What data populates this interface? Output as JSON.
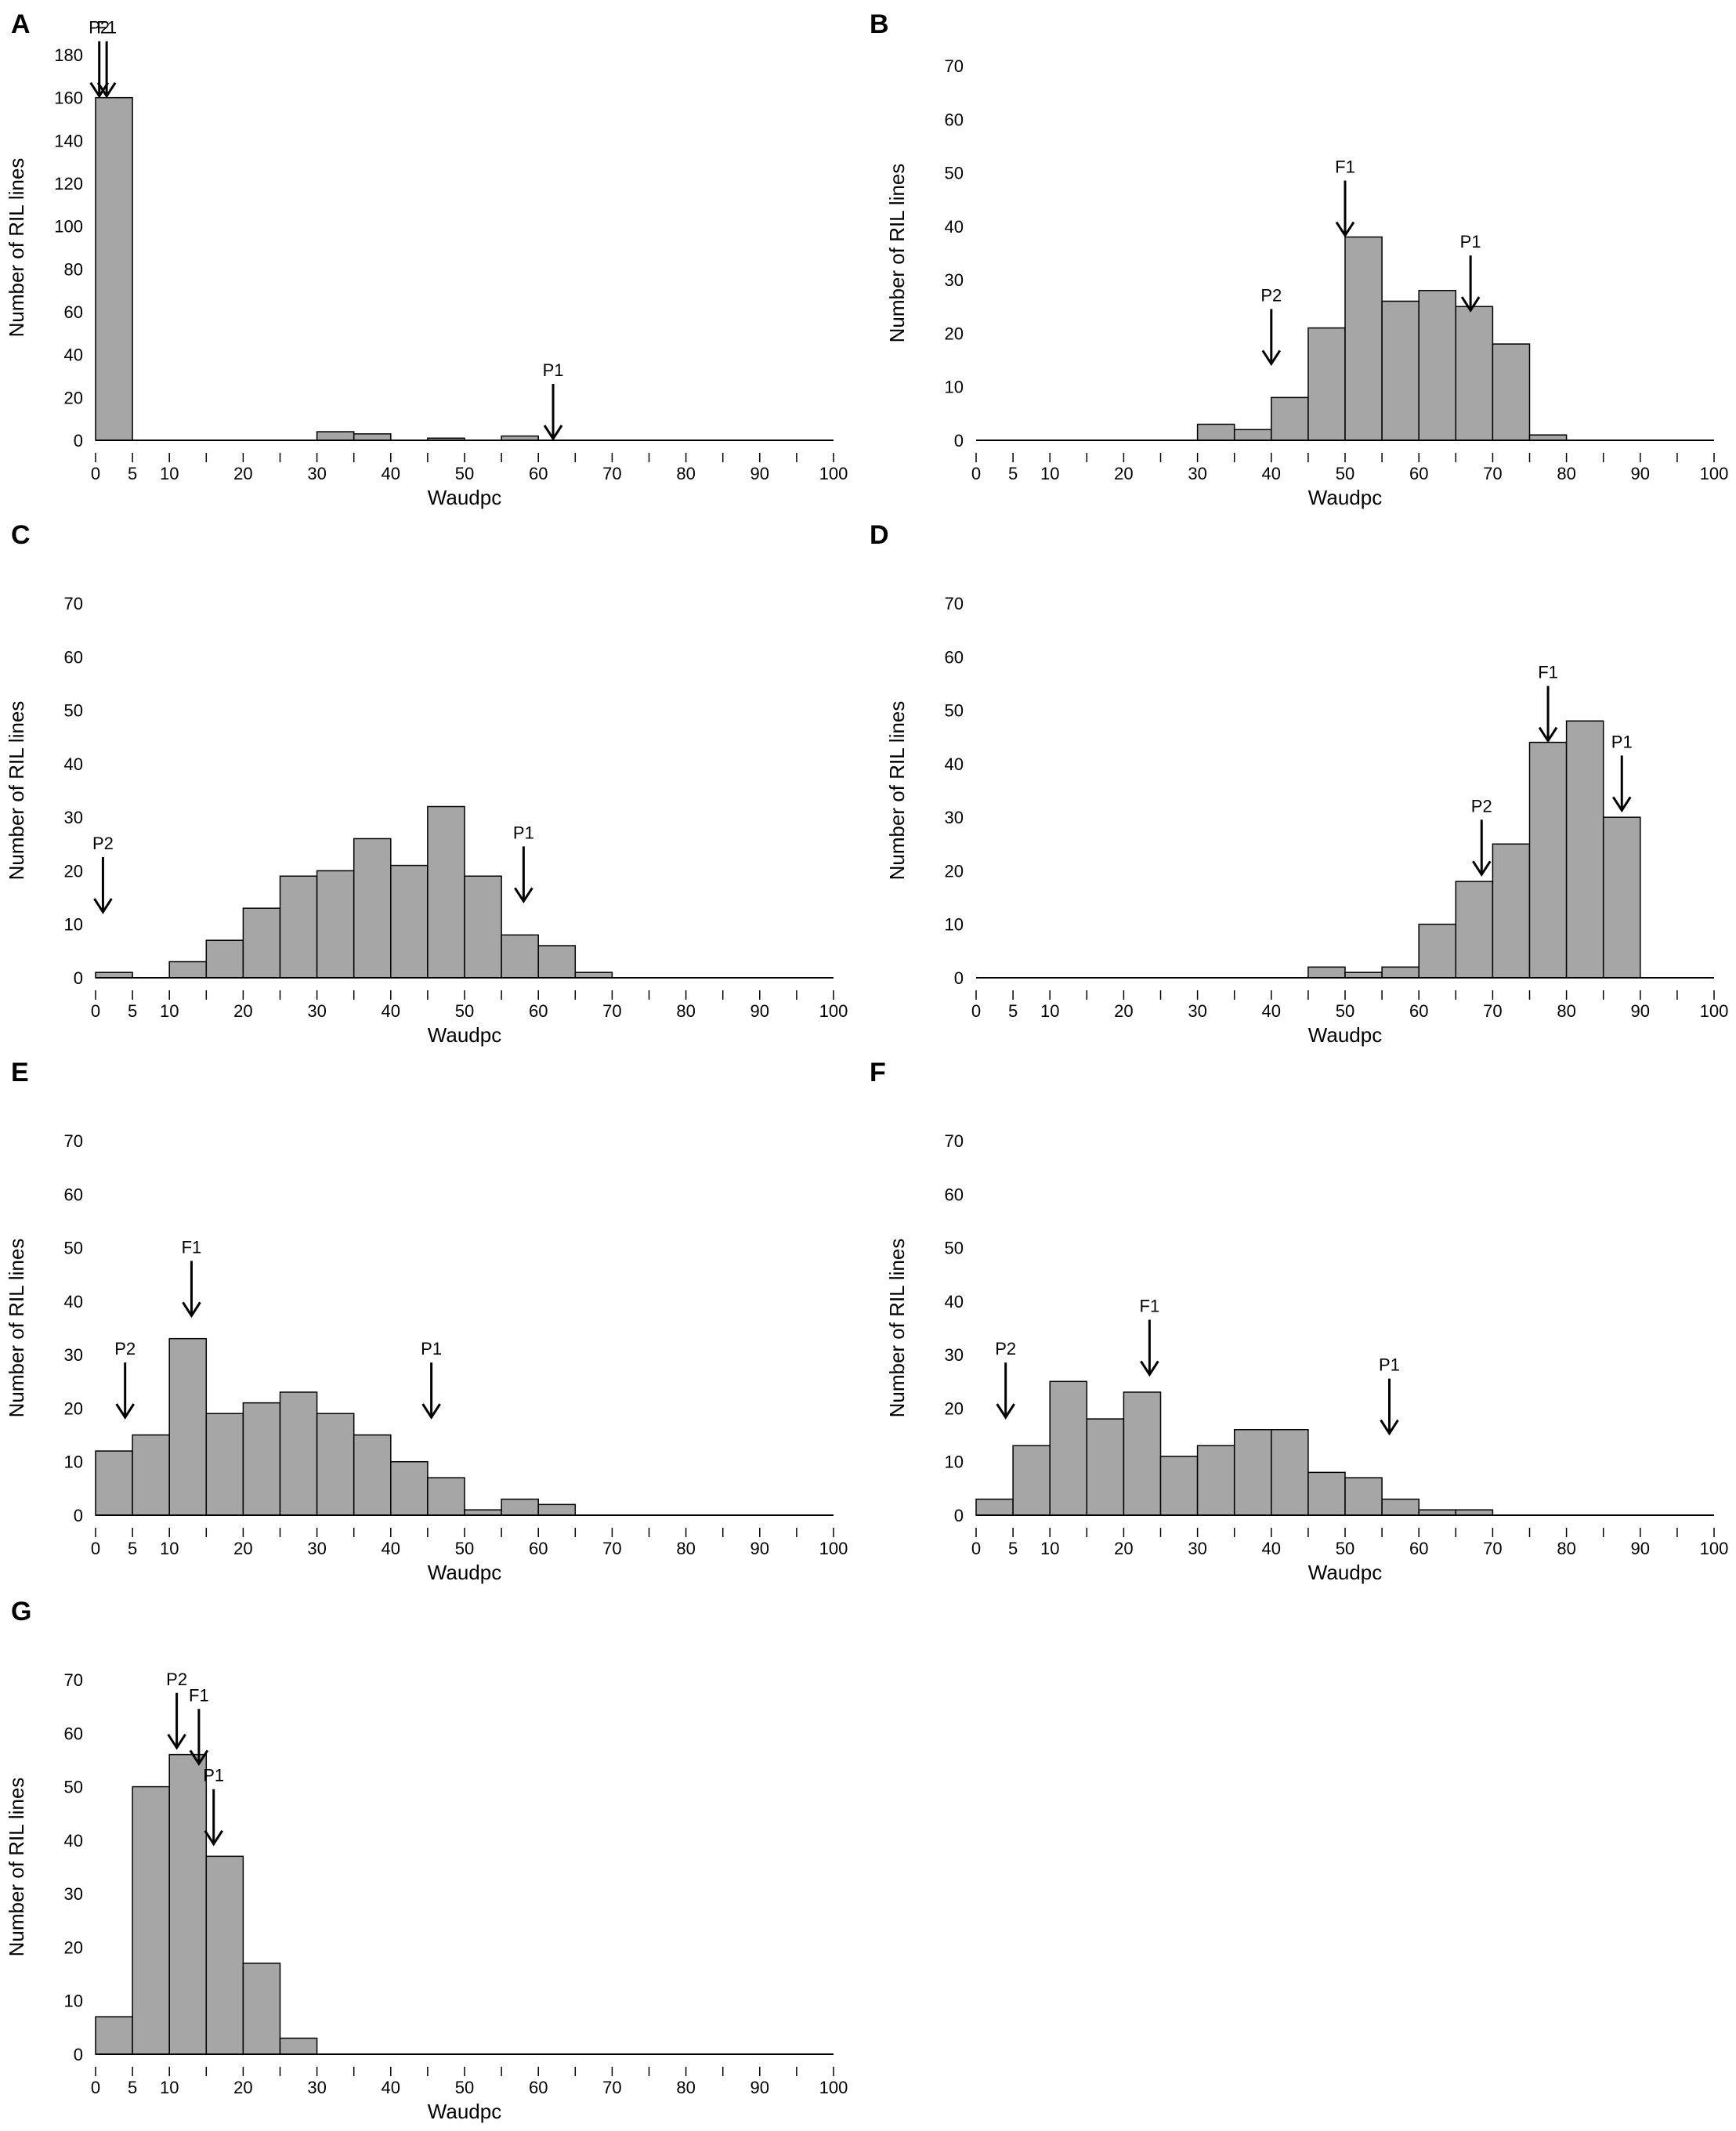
{
  "figure": {
    "bar_color": "#a6a6a6",
    "bar_stroke": "#000000"
  },
  "chart_data": [
    {
      "panel": "A",
      "type": "bar",
      "xlabel": "Waudpc",
      "ylabel": "Number of RIL lines",
      "xlim": [
        0,
        100
      ],
      "ylim": [
        0,
        180
      ],
      "xticks": [
        0,
        5,
        10,
        20,
        30,
        40,
        50,
        60,
        70,
        80,
        90,
        100
      ],
      "yticks": [
        0,
        20,
        40,
        60,
        80,
        100,
        120,
        140,
        160,
        180
      ],
      "bin_width": 5,
      "bins": [
        0,
        5,
        10,
        15,
        20,
        25,
        30,
        35,
        40,
        45,
        50,
        55,
        60,
        65,
        70,
        75,
        80,
        85,
        90,
        95
      ],
      "values": [
        160,
        0,
        0,
        0,
        0,
        0,
        4,
        3,
        0,
        1,
        0,
        2,
        0,
        0,
        0,
        0,
        0,
        0,
        0,
        0
      ],
      "markers": [
        {
          "label": "P2",
          "x": 0.5,
          "y": 160
        },
        {
          "label": "F1",
          "x": 1.5,
          "y": 160
        },
        {
          "label": "P1",
          "x": 62,
          "y": 0
        }
      ]
    },
    {
      "panel": "B",
      "type": "bar",
      "xlabel": "Waudpc",
      "ylabel": "Number of RIL lines",
      "xlim": [
        0,
        100
      ],
      "ylim": [
        0,
        70
      ],
      "xticks": [
        0,
        5,
        10,
        20,
        30,
        40,
        50,
        60,
        70,
        80,
        90,
        100
      ],
      "yticks": [
        0,
        10,
        20,
        30,
        40,
        50,
        60,
        70
      ],
      "bin_width": 5,
      "bins": [
        0,
        5,
        10,
        15,
        20,
        25,
        30,
        35,
        40,
        45,
        50,
        55,
        60,
        65,
        70,
        75,
        80,
        85,
        90,
        95
      ],
      "values": [
        0,
        0,
        0,
        0,
        0,
        0,
        3,
        2,
        8,
        21,
        38,
        26,
        28,
        25,
        18,
        1,
        0,
        0,
        0,
        0
      ],
      "markers": [
        {
          "label": "P2",
          "x": 40,
          "y": 14
        },
        {
          "label": "F1",
          "x": 50,
          "y": 38
        },
        {
          "label": "P1",
          "x": 67,
          "y": 24
        }
      ]
    },
    {
      "panel": "C",
      "type": "bar",
      "xlabel": "Waudpc",
      "ylabel": "Number of RIL lines",
      "xlim": [
        0,
        100
      ],
      "ylim": [
        0,
        70
      ],
      "xticks": [
        0,
        5,
        10,
        20,
        30,
        40,
        50,
        60,
        70,
        80,
        90,
        100
      ],
      "yticks": [
        0,
        10,
        20,
        30,
        40,
        50,
        60,
        70
      ],
      "bin_width": 5,
      "bins": [
        0,
        5,
        10,
        15,
        20,
        25,
        30,
        35,
        40,
        45,
        50,
        55,
        60,
        65,
        70,
        75,
        80,
        85,
        90,
        95
      ],
      "values": [
        1,
        0,
        3,
        7,
        13,
        19,
        20,
        26,
        21,
        32,
        19,
        8,
        6,
        1,
        0,
        0,
        0,
        0,
        0,
        0
      ],
      "markers": [
        {
          "label": "P2",
          "x": 1,
          "y": 12
        },
        {
          "label": "P1",
          "x": 58,
          "y": 14
        }
      ]
    },
    {
      "panel": "D",
      "type": "bar",
      "xlabel": "Waudpc",
      "ylabel": "Number of RIL lines",
      "xlim": [
        0,
        100
      ],
      "ylim": [
        0,
        70
      ],
      "xticks": [
        0,
        5,
        10,
        20,
        30,
        40,
        50,
        60,
        70,
        80,
        90,
        100
      ],
      "yticks": [
        0,
        10,
        20,
        30,
        40,
        50,
        60,
        70
      ],
      "bin_width": 5,
      "bins": [
        0,
        5,
        10,
        15,
        20,
        25,
        30,
        35,
        40,
        45,
        50,
        55,
        60,
        65,
        70,
        75,
        80,
        85,
        90,
        95
      ],
      "values": [
        0,
        0,
        0,
        0,
        0,
        0,
        0,
        0,
        0,
        2,
        1,
        2,
        10,
        18,
        25,
        44,
        48,
        30,
        0,
        0
      ],
      "markers": [
        {
          "label": "P2",
          "x": 68.5,
          "y": 19
        },
        {
          "label": "F1",
          "x": 77.5,
          "y": 44
        },
        {
          "label": "P1",
          "x": 87.5,
          "y": 31
        }
      ]
    },
    {
      "panel": "E",
      "type": "bar",
      "xlabel": "Waudpc",
      "ylabel": "Number of RIL lines",
      "xlim": [
        0,
        100
      ],
      "ylim": [
        0,
        70
      ],
      "xticks": [
        0,
        5,
        10,
        20,
        30,
        40,
        50,
        60,
        70,
        80,
        90,
        100
      ],
      "yticks": [
        0,
        10,
        20,
        30,
        40,
        50,
        60,
        70
      ],
      "bin_width": 5,
      "bins": [
        0,
        5,
        10,
        15,
        20,
        25,
        30,
        35,
        40,
        45,
        50,
        55,
        60,
        65,
        70,
        75,
        80,
        85,
        90,
        95
      ],
      "values": [
        12,
        15,
        33,
        19,
        21,
        23,
        19,
        15,
        10,
        7,
        1,
        3,
        2,
        0,
        0,
        0,
        0,
        0,
        0,
        0
      ],
      "markers": [
        {
          "label": "P2",
          "x": 4,
          "y": 18
        },
        {
          "label": "F1",
          "x": 13,
          "y": 37
        },
        {
          "label": "P1",
          "x": 45.5,
          "y": 18
        }
      ]
    },
    {
      "panel": "F",
      "type": "bar",
      "xlabel": "Waudpc",
      "ylabel": "Number of RIL lines",
      "xlim": [
        0,
        100
      ],
      "ylim": [
        0,
        70
      ],
      "xticks": [
        0,
        5,
        10,
        20,
        30,
        40,
        50,
        60,
        70,
        80,
        90,
        100
      ],
      "yticks": [
        0,
        10,
        20,
        30,
        40,
        50,
        60,
        70
      ],
      "bin_width": 5,
      "bins": [
        0,
        5,
        10,
        15,
        20,
        25,
        30,
        35,
        40,
        45,
        50,
        55,
        60,
        65,
        70,
        75,
        80,
        85,
        90,
        95
      ],
      "values": [
        3,
        13,
        25,
        18,
        23,
        11,
        13,
        16,
        16,
        8,
        7,
        3,
        1,
        1,
        0,
        0,
        0,
        0,
        0,
        0
      ],
      "markers": [
        {
          "label": "P2",
          "x": 4,
          "y": 18
        },
        {
          "label": "F1",
          "x": 23.5,
          "y": 26
        },
        {
          "label": "P1",
          "x": 56,
          "y": 15
        }
      ]
    },
    {
      "panel": "G",
      "type": "bar",
      "xlabel": "Waudpc",
      "ylabel": "Number of RIL lines",
      "xlim": [
        0,
        100
      ],
      "ylim": [
        0,
        70
      ],
      "xticks": [
        0,
        5,
        10,
        20,
        30,
        40,
        50,
        60,
        70,
        80,
        90,
        100
      ],
      "yticks": [
        0,
        10,
        20,
        30,
        40,
        50,
        60,
        70
      ],
      "bin_width": 5,
      "bins": [
        0,
        5,
        10,
        15,
        20,
        25,
        30,
        35,
        40,
        45,
        50,
        55,
        60,
        65,
        70,
        75,
        80,
        85,
        90,
        95
      ],
      "values": [
        7,
        50,
        56,
        37,
        17,
        3,
        0,
        0,
        0,
        0,
        0,
        0,
        0,
        0,
        0,
        0,
        0,
        0,
        0,
        0
      ],
      "markers": [
        {
          "label": "P2",
          "x": 11,
          "y": 57
        },
        {
          "label": "F1",
          "x": 14,
          "y": 54
        },
        {
          "label": "P1",
          "x": 16,
          "y": 39
        }
      ]
    }
  ]
}
